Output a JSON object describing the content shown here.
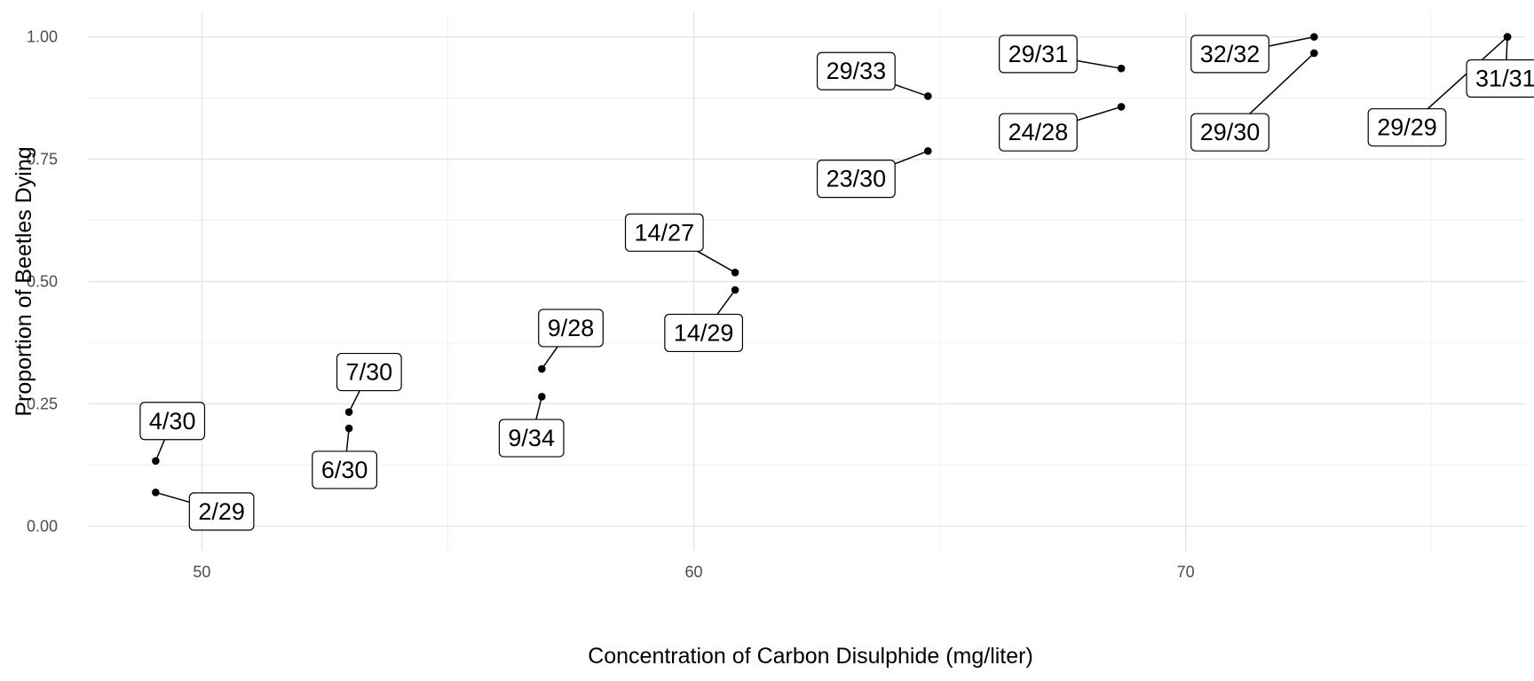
{
  "chart_data": {
    "type": "scatter",
    "title": "",
    "xlabel": "Concentration of Carbon Disulphide (mg/liter)",
    "ylabel": "Proportion of Beetles Dying",
    "xlim": [
      47.7,
      76.9
    ],
    "ylim": [
      -0.05,
      1.05
    ],
    "x_ticks": [
      50,
      60,
      70
    ],
    "x_tick_labels": [
      "50",
      "60",
      "70"
    ],
    "y_ticks": [
      0,
      0.25,
      0.5,
      0.75,
      1.0
    ],
    "y_tick_labels": [
      "0.00",
      "0.25",
      "0.50",
      "0.75",
      "1.00"
    ],
    "grid": true,
    "points": [
      {
        "x": 49.06,
        "y": 0.069,
        "label": "2/29",
        "label_pos": {
          "x": 50.4,
          "y": 0.03
        }
      },
      {
        "x": 49.06,
        "y": 0.1333,
        "label": "4/30",
        "label_pos": {
          "x": 49.4,
          "y": 0.215
        }
      },
      {
        "x": 52.99,
        "y": 0.2,
        "label": "6/30",
        "label_pos": {
          "x": 52.9,
          "y": 0.115
        }
      },
      {
        "x": 52.99,
        "y": 0.2333,
        "label": "7/30",
        "label_pos": {
          "x": 53.4,
          "y": 0.315
        }
      },
      {
        "x": 56.91,
        "y": 0.2647,
        "label": "9/34",
        "label_pos": {
          "x": 56.7,
          "y": 0.18
        }
      },
      {
        "x": 56.91,
        "y": 0.3214,
        "label": "9/28",
        "label_pos": {
          "x": 57.5,
          "y": 0.405
        }
      },
      {
        "x": 60.84,
        "y": 0.4828,
        "label": "14/29",
        "label_pos": {
          "x": 60.2,
          "y": 0.395
        }
      },
      {
        "x": 60.84,
        "y": 0.5185,
        "label": "14/27",
        "label_pos": {
          "x": 59.4,
          "y": 0.6
        }
      },
      {
        "x": 64.76,
        "y": 0.7667,
        "label": "23/30",
        "label_pos": {
          "x": 63.3,
          "y": 0.71
        }
      },
      {
        "x": 64.76,
        "y": 0.8788,
        "label": "29/33",
        "label_pos": {
          "x": 63.3,
          "y": 0.93
        }
      },
      {
        "x": 68.69,
        "y": 0.8571,
        "label": "24/28",
        "label_pos": {
          "x": 67.0,
          "y": 0.805
        }
      },
      {
        "x": 68.69,
        "y": 0.9355,
        "label": "29/31",
        "label_pos": {
          "x": 67.0,
          "y": 0.965
        }
      },
      {
        "x": 72.61,
        "y": 0.9667,
        "label": "29/30",
        "label_pos": {
          "x": 70.9,
          "y": 0.805
        }
      },
      {
        "x": 72.61,
        "y": 1.0,
        "label": "32/32",
        "label_pos": {
          "x": 70.9,
          "y": 0.965
        }
      },
      {
        "x": 76.54,
        "y": 1.0,
        "label": "31/31",
        "label_pos": {
          "x": 76.5,
          "y": 0.915
        }
      },
      {
        "x": 76.54,
        "y": 1.0,
        "label": "29/29",
        "label_pos": {
          "x": 74.5,
          "y": 0.815
        }
      }
    ]
  }
}
